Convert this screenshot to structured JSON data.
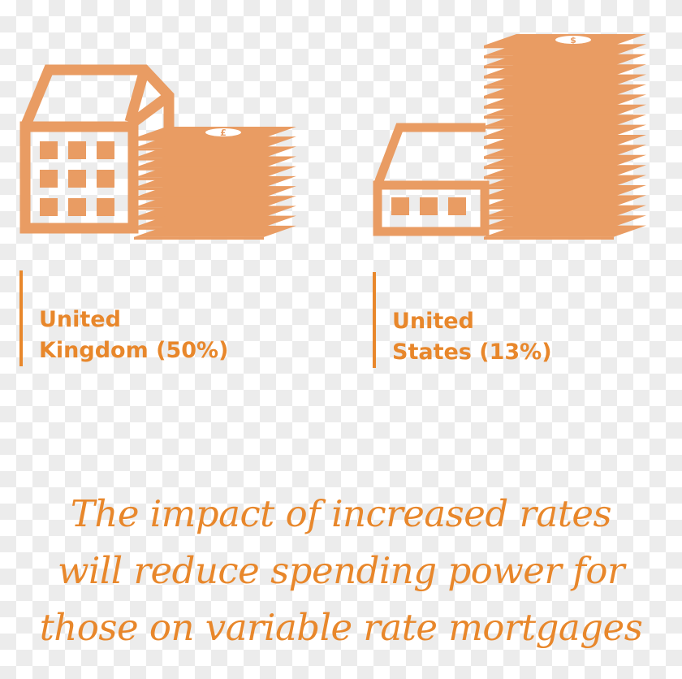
{
  "colors": {
    "icon": "#e99c63",
    "text": "#e8872b"
  },
  "panels": [
    {
      "country_line1": "United",
      "country_line2": "Kingdom (50%)",
      "icon": "building-with-pound-money-stack-icon",
      "currency_symbol": "£"
    },
    {
      "country_line1": "United",
      "country_line2": "States (13%)",
      "icon": "house-with-dollar-money-stack-icon",
      "currency_symbol": "$"
    }
  ],
  "quote": {
    "line1": "The impact of increased rates",
    "line2": "will reduce spending power for",
    "line3": "those on variable rate mortgages"
  }
}
